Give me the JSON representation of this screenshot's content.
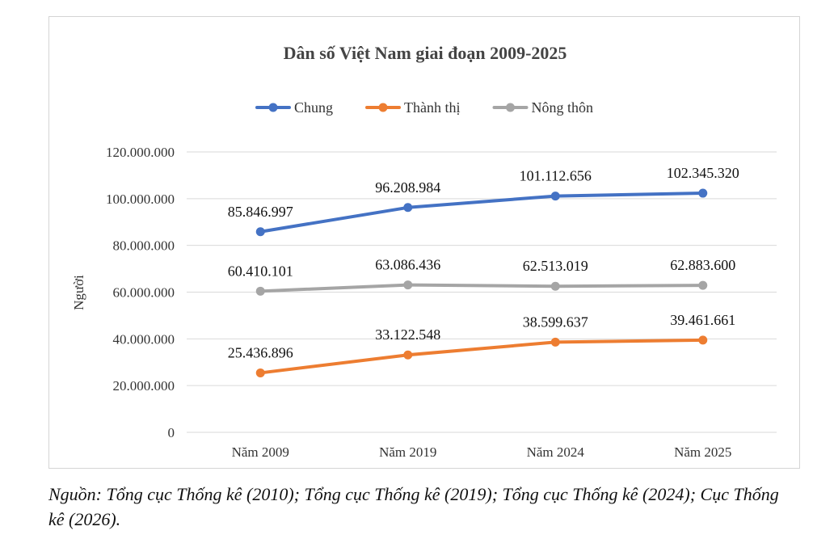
{
  "chart_data": {
    "type": "line",
    "title": "Dân số Việt Nam giai đoạn 2009-2025",
    "xlabel": "",
    "ylabel": "Người",
    "categories": [
      "Năm 2009",
      "Năm 2019",
      "Năm 2024",
      "Năm 2025"
    ],
    "ylim": [
      0,
      120000000
    ],
    "yticks": [
      0,
      20000000,
      40000000,
      60000000,
      80000000,
      100000000,
      120000000
    ],
    "ytick_labels": [
      "0",
      "20.000.000",
      "40.000.000",
      "60.000.000",
      "80.000.000",
      "100.000.000",
      "120.000.000"
    ],
    "grid": true,
    "legend": "top",
    "series": [
      {
        "name": "Chung",
        "color": "#4472c4",
        "values": [
          85846997,
          96208984,
          101112656,
          102345320
        ],
        "labels": [
          "85.846.997",
          "96.208.984",
          "101.112.656",
          "102.345.320"
        ]
      },
      {
        "name": "Thành thị",
        "color": "#ed7d31",
        "values": [
          25436896,
          33122548,
          38599637,
          39461661
        ],
        "labels": [
          "25.436.896",
          "33.122.548",
          "38.599.637",
          "39.461.661"
        ]
      },
      {
        "name": "Nông thôn",
        "color": "#a5a5a5",
        "values": [
          60410101,
          63086436,
          62513019,
          62883600
        ],
        "labels": [
          "60.410.101",
          "63.086.436",
          "62.513.019",
          "62.883.600"
        ]
      }
    ]
  },
  "source_note": "Nguồn: Tổng cục Thống kê (2010); Tổng cục Thống kê (2019); Tổng cục Thống kê (2024); Cục Thống kê (2026)."
}
